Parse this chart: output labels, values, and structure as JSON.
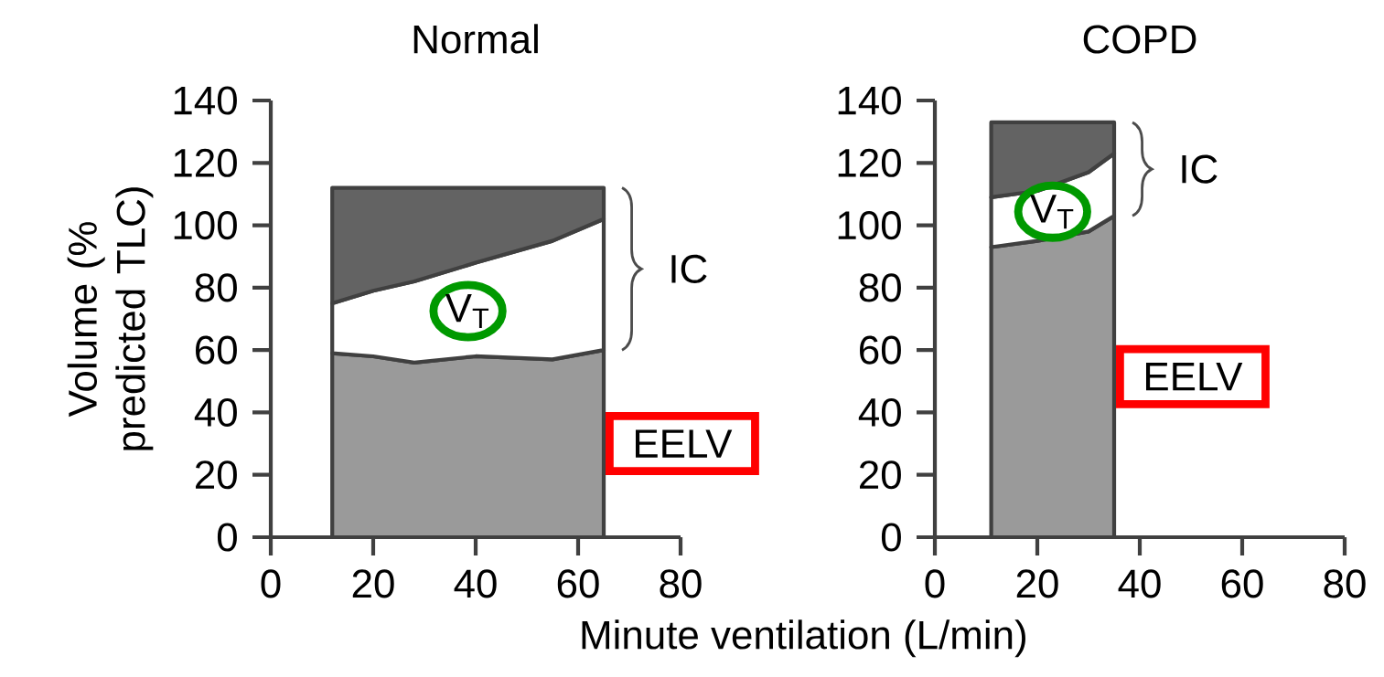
{
  "chart_data": [
    {
      "type": "area",
      "stacked": true,
      "title": "Normal",
      "ylabel": "Volume (% predicted TLC)",
      "xlabel": "Minute ventilation (L/min)",
      "x": [
        12,
        20,
        28,
        40,
        55,
        65
      ],
      "series": [
        {
          "color": "#9a9a9a",
          "values": [
            59,
            58,
            56,
            58,
            57,
            60
          ]
        },
        {
          "color": "#ffffff",
          "values": [
            16,
            21,
            26,
            30,
            38,
            42
          ]
        },
        {
          "color": "#636363",
          "values": [
            37,
            33,
            30,
            24,
            17,
            10
          ]
        }
      ],
      "xlim": [
        0,
        80
      ],
      "xticks": [
        0,
        20,
        40,
        60,
        80
      ],
      "ylim": [
        0,
        140
      ],
      "yticks": [
        0,
        20,
        40,
        60,
        80,
        100,
        120,
        140
      ],
      "annotations": [
        "V$_{T}$",
        "IC",
        "EELV"
      ]
    },
    {
      "type": "area",
      "stacked": true,
      "title": "COPD",
      "x": [
        11,
        20,
        30,
        35
      ],
      "series": [
        {
          "color": "#9a9a9a",
          "values": [
            93,
            95,
            98,
            103
          ]
        },
        {
          "color": "#ffffff",
          "values": [
            16,
            16,
            19,
            20
          ]
        },
        {
          "color": "#636363",
          "values": [
            24,
            22,
            16,
            10
          ]
        }
      ],
      "xlim": [
        0,
        80
      ],
      "xticks": [
        0,
        20,
        40,
        60,
        80
      ],
      "ylim": [
        0,
        140
      ],
      "yticks": [
        0,
        20,
        40,
        60,
        80,
        100,
        120,
        140
      ],
      "annotations": [
        "V$_{T}$",
        "IC",
        "EELV"
      ]
    }
  ]
}
